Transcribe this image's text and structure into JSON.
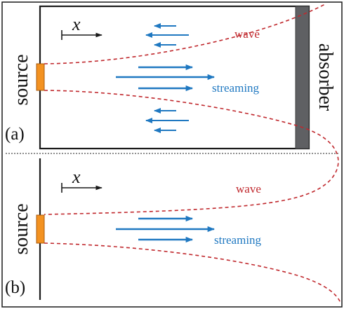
{
  "panels": [
    {
      "id": "a",
      "panel_label": "(a)",
      "source_label": "source",
      "absorber_label": "absorber",
      "axis_label": "x",
      "wave_label": "wave",
      "streaming_label": "streaming"
    },
    {
      "id": "b",
      "panel_label": "(b)",
      "source_label": "source",
      "axis_label": "x",
      "wave_label": "wave",
      "streaming_label": "streaming"
    }
  ],
  "colors": {
    "frame": "#1a1a1a",
    "wave": "#c0282d",
    "streaming": "#1f78c1",
    "source": "#f39221",
    "absorber": "#5f6063",
    "divider": "#222222"
  }
}
